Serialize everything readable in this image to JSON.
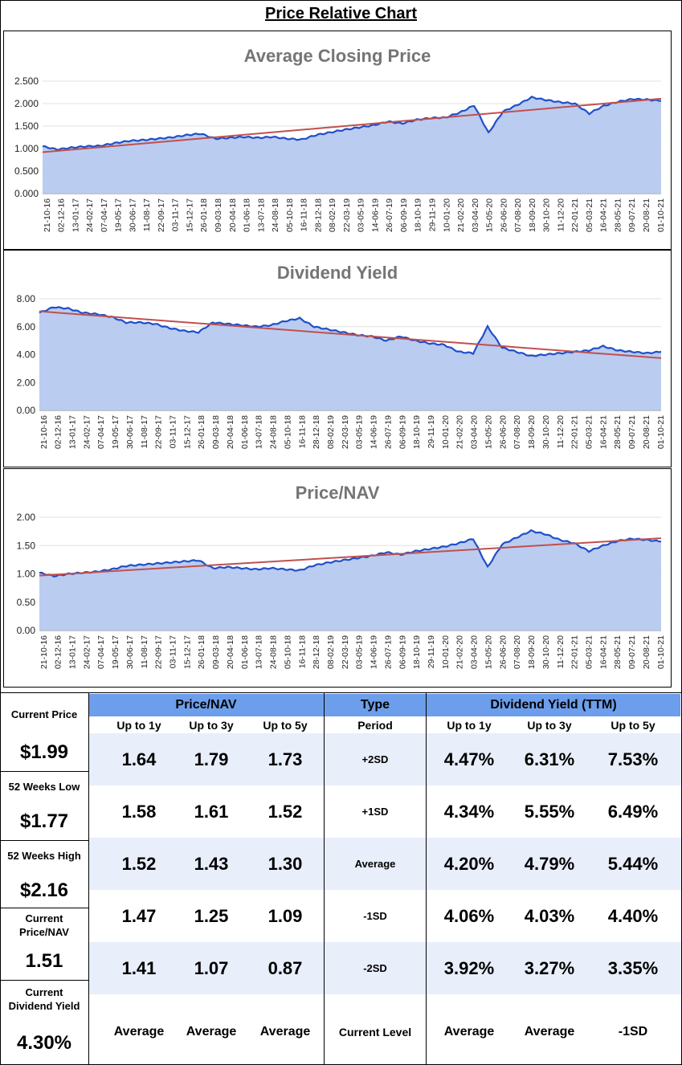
{
  "page_title": "Price Relative Chart",
  "chart_data": [
    {
      "type": "area",
      "title": "Average Closing Price",
      "yticks": [
        "0.000",
        "0.500",
        "1.000",
        "1.500",
        "2.000",
        "2.500"
      ],
      "ylim": [
        0,
        2.5
      ],
      "x_labels": [
        "21-10-16",
        "02-12-16",
        "13-01-17",
        "24-02-17",
        "07-04-17",
        "19-05-17",
        "30-06-17",
        "11-08-17",
        "22-09-17",
        "03-11-17",
        "15-12-17",
        "26-01-18",
        "09-03-18",
        "20-04-18",
        "01-06-18",
        "13-07-18",
        "24-08-18",
        "05-10-18",
        "16-11-18",
        "28-12-18",
        "08-02-19",
        "22-03-19",
        "03-05-19",
        "14-06-19",
        "26-07-19",
        "06-09-19",
        "18-10-19",
        "29-11-19",
        "10-01-20",
        "21-02-20",
        "03-04-20",
        "15-05-20",
        "26-06-20",
        "07-08-20",
        "18-09-20",
        "30-10-20",
        "11-12-20",
        "22-01-21",
        "05-03-21",
        "16-04-21",
        "28-05-21",
        "09-07-21",
        "20-08-21",
        "01-10-21"
      ],
      "values": [
        1.05,
        0.98,
        1.02,
        1.05,
        1.06,
        1.12,
        1.17,
        1.19,
        1.22,
        1.25,
        1.3,
        1.33,
        1.22,
        1.24,
        1.26,
        1.24,
        1.26,
        1.22,
        1.2,
        1.3,
        1.36,
        1.42,
        1.47,
        1.52,
        1.6,
        1.56,
        1.64,
        1.68,
        1.69,
        1.8,
        1.96,
        1.35,
        1.82,
        1.97,
        2.14,
        2.08,
        2.03,
        2.0,
        1.78,
        1.95,
        2.04,
        2.1,
        2.09,
        2.06
      ],
      "trend": [
        0.92,
        2.11
      ]
    },
    {
      "type": "area",
      "title": "Dividend Yield",
      "yticks": [
        "0.00",
        "2.00",
        "4.00",
        "6.00",
        "8.00"
      ],
      "ylim": [
        0,
        8
      ],
      "x_labels": [
        "21-10-16",
        "02-12-16",
        "13-01-17",
        "24-02-17",
        "07-04-17",
        "19-05-17",
        "30-06-17",
        "11-08-17",
        "22-09-17",
        "03-11-17",
        "15-12-17",
        "26-01-18",
        "09-03-18",
        "20-04-18",
        "01-06-18",
        "13-07-18",
        "24-08-18",
        "05-10-18",
        "16-11-18",
        "28-12-18",
        "08-02-19",
        "22-03-19",
        "03-05-19",
        "14-06-19",
        "26-07-19",
        "06-09-19",
        "18-10-19",
        "29-11-19",
        "10-01-20",
        "21-02-20",
        "03-04-20",
        "15-05-20",
        "26-06-20",
        "07-08-20",
        "18-09-20",
        "30-10-20",
        "11-12-20",
        "22-01-21",
        "05-03-21",
        "16-04-21",
        "28-05-21",
        "09-07-21",
        "20-08-21",
        "01-10-21"
      ],
      "values": [
        7.0,
        7.4,
        7.3,
        7.0,
        6.9,
        6.7,
        6.3,
        6.3,
        6.2,
        5.9,
        5.7,
        5.6,
        6.3,
        6.2,
        6.1,
        6.0,
        6.1,
        6.4,
        6.6,
        6.0,
        5.8,
        5.6,
        5.4,
        5.3,
        5.0,
        5.3,
        5.0,
        4.8,
        4.7,
        4.2,
        4.1,
        6.0,
        4.5,
        4.2,
        3.9,
        4.0,
        4.1,
        4.2,
        4.3,
        4.6,
        4.3,
        4.2,
        4.1,
        4.2
      ],
      "trend": [
        7.1,
        3.75
      ]
    },
    {
      "type": "area",
      "title": "Price/NAV",
      "yticks": [
        "0.00",
        "0.50",
        "1.00",
        "1.50",
        "2.00"
      ],
      "ylim": [
        0,
        2
      ],
      "x_labels": [
        "21-10-16",
        "02-12-16",
        "13-01-17",
        "24-02-17",
        "07-04-17",
        "19-05-17",
        "30-06-17",
        "11-08-17",
        "22-09-17",
        "03-11-17",
        "15-12-17",
        "26-01-18",
        "09-03-18",
        "20-04-18",
        "01-06-18",
        "13-07-18",
        "24-08-18",
        "05-10-18",
        "16-11-18",
        "28-12-18",
        "08-02-19",
        "22-03-19",
        "03-05-19",
        "14-06-19",
        "26-07-19",
        "06-09-19",
        "18-10-19",
        "29-11-19",
        "10-01-20",
        "21-02-20",
        "03-04-20",
        "15-05-20",
        "26-06-20",
        "07-08-20",
        "18-09-20",
        "30-10-20",
        "11-12-20",
        "22-01-21",
        "05-03-21",
        "16-04-21",
        "28-05-21",
        "09-07-21",
        "20-08-21",
        "01-10-21"
      ],
      "values": [
        1.02,
        0.96,
        1.0,
        1.02,
        1.04,
        1.08,
        1.14,
        1.16,
        1.18,
        1.2,
        1.22,
        1.24,
        1.1,
        1.12,
        1.1,
        1.08,
        1.1,
        1.08,
        1.06,
        1.15,
        1.2,
        1.24,
        1.28,
        1.32,
        1.38,
        1.34,
        1.4,
        1.44,
        1.48,
        1.54,
        1.62,
        1.12,
        1.52,
        1.64,
        1.76,
        1.7,
        1.6,
        1.54,
        1.4,
        1.5,
        1.58,
        1.62,
        1.6,
        1.57
      ],
      "trend": [
        0.97,
        1.63
      ]
    }
  ],
  "table": {
    "left": [
      {
        "label": "Current Price",
        "value": "$1.99"
      },
      {
        "label": "52 Weeks Low",
        "value": "$1.77"
      },
      {
        "label": "52 Weeks High",
        "value": "$2.16"
      },
      {
        "label": "Current Price/NAV",
        "value": "1.51"
      },
      {
        "label": "Current Dividend Yield",
        "value": "4.30%"
      }
    ],
    "headers": {
      "price_nav": "Price/NAV",
      "type": "Type",
      "div_yield": "Dividend Yield (TTM)"
    },
    "subheaders": [
      "Up to 1y",
      "Up to 3y",
      "Up to 5y",
      "Period",
      "Up to 1y",
      "Up to 3y",
      "Up to 5y"
    ],
    "rows": [
      {
        "pn": [
          "1.64",
          "1.79",
          "1.73"
        ],
        "type": "+2SD",
        "dy": [
          "4.47%",
          "6.31%",
          "7.53%"
        ]
      },
      {
        "pn": [
          "1.58",
          "1.61",
          "1.52"
        ],
        "type": "+1SD",
        "dy": [
          "4.34%",
          "5.55%",
          "6.49%"
        ]
      },
      {
        "pn": [
          "1.52",
          "1.43",
          "1.30"
        ],
        "type": "Average",
        "dy": [
          "4.20%",
          "4.79%",
          "5.44%"
        ]
      },
      {
        "pn": [
          "1.47",
          "1.25",
          "1.09"
        ],
        "type": "-1SD",
        "dy": [
          "4.06%",
          "4.03%",
          "4.40%"
        ]
      },
      {
        "pn": [
          "1.41",
          "1.07",
          "0.87"
        ],
        "type": "-2SD",
        "dy": [
          "3.92%",
          "3.27%",
          "3.35%"
        ]
      }
    ],
    "level_row": {
      "pn": [
        "Average",
        "Average",
        "Average"
      ],
      "type": "Current Level",
      "dy": [
        "Average",
        "Average",
        "-1SD"
      ]
    }
  },
  "colors": {
    "line": "#1f4fc9",
    "fill": "#b4c7ef",
    "trend": "#c0504d",
    "header": "#6d9eeb",
    "band": "#e8eefa",
    "grid": "#e0e0e0"
  }
}
